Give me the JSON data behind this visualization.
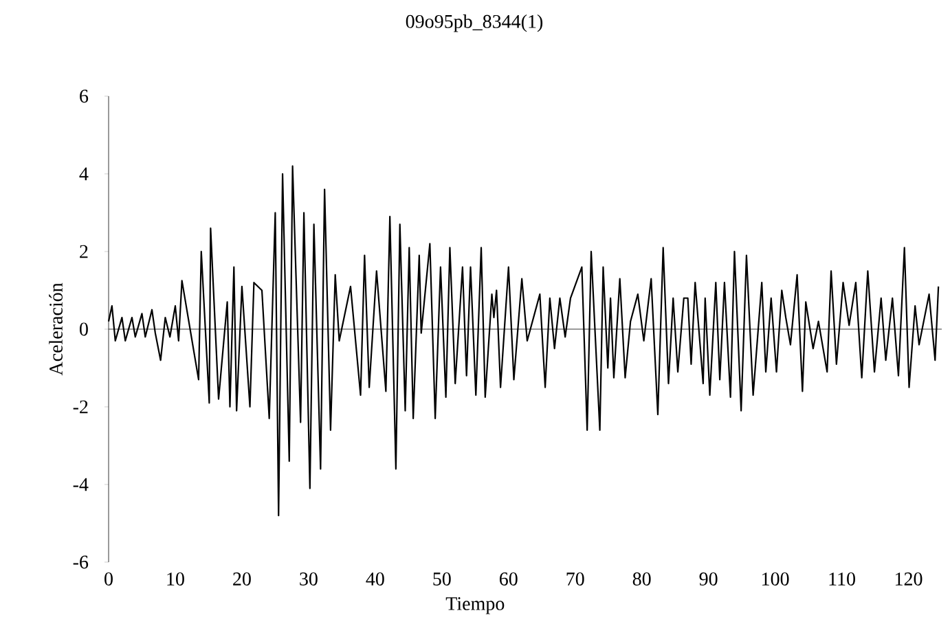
{
  "chart_data": {
    "type": "line",
    "title": "09o95pb_8344(1)",
    "xlabel": "Tiempo",
    "ylabel": "Aceleración",
    "xlim": [
      0,
      125
    ],
    "ylim": [
      -6,
      6
    ],
    "xticks": [
      0,
      10,
      20,
      30,
      40,
      50,
      60,
      70,
      80,
      90,
      100,
      110,
      120
    ],
    "yticks": [
      -6,
      -4,
      -2,
      0,
      2,
      4,
      6
    ],
    "marker": "none",
    "line_style": "solid",
    "series": [
      {
        "color": "#000000",
        "x": [
          0,
          0.5,
          1,
          2,
          2.5,
          3.5,
          4,
          5,
          5.5,
          6.5,
          7,
          7.8,
          8.5,
          9.2,
          10,
          10.5,
          11,
          13.5,
          13.9,
          15.1,
          15.3,
          16.5,
          17.8,
          18.2,
          18.8,
          19.2,
          20,
          21.2,
          21.8,
          23,
          24.1,
          25,
          25.5,
          26.1,
          27.1,
          27.6,
          28.8,
          29.3,
          30.2,
          30.8,
          31.8,
          32.4,
          33.3,
          34,
          34.6,
          36.3,
          37.8,
          38.4,
          39.1,
          40.2,
          41.6,
          42.2,
          43.1,
          43.7,
          44.5,
          45.1,
          45.7,
          46.6,
          46.9,
          48.2,
          49,
          49.8,
          50.6,
          51.2,
          52,
          53.1,
          53.7,
          54.3,
          55.1,
          55.9,
          56.5,
          57.5,
          57.8,
          58.2,
          58.8,
          60,
          60.8,
          62,
          62.8,
          64.7,
          65.5,
          66.2,
          66.9,
          67.7,
          68.5,
          69.3,
          71,
          71.8,
          72.4,
          73.7,
          74.2,
          74.9,
          75.3,
          75.8,
          76.7,
          77.5,
          78.3,
          79.4,
          80.3,
          81.4,
          82.4,
          83.2,
          84,
          84.7,
          85.4,
          86.3,
          86.9,
          87.4,
          88,
          89.2,
          89.5,
          90.2,
          91.1,
          91.7,
          92.4,
          93.3,
          93.9,
          94.9,
          95.7,
          96.7,
          98,
          98.6,
          99.4,
          100.2,
          101,
          101.6,
          102.3,
          103.3,
          104.1,
          104.6,
          105.7,
          106.5,
          107.8,
          108.4,
          109.2,
          110.2,
          111.1,
          112.1,
          113,
          113.9,
          114.9,
          115.9,
          116.6,
          117.6,
          118.5,
          119.4,
          120.1,
          121,
          121.6,
          123.1,
          124,
          124.5
        ],
        "values": [
          0.2,
          0.6,
          -0.3,
          0.3,
          -0.3,
          0.3,
          -0.2,
          0.4,
          -0.2,
          0.5,
          -0.1,
          -0.8,
          0.3,
          -0.2,
          0.6,
          -0.3,
          1.25,
          -1.3,
          2.0,
          -1.9,
          2.6,
          -1.8,
          0.7,
          -2.0,
          1.6,
          -2.1,
          1.1,
          -2.0,
          1.2,
          1.0,
          -2.3,
          3.0,
          -4.8,
          4.0,
          -3.4,
          4.2,
          -2.4,
          3.0,
          -4.1,
          2.7,
          -3.6,
          3.6,
          -2.6,
          1.4,
          -0.3,
          1.1,
          -1.7,
          1.9,
          -1.5,
          1.5,
          -1.6,
          2.9,
          -3.6,
          2.7,
          -2.1,
          2.1,
          -2.3,
          1.9,
          -0.1,
          2.2,
          -2.3,
          1.6,
          -1.75,
          2.1,
          -1.4,
          1.6,
          -1.2,
          1.6,
          -1.7,
          2.1,
          -1.75,
          0.9,
          0.3,
          1.0,
          -1.5,
          1.6,
          -1.3,
          1.3,
          -0.3,
          0.9,
          -1.5,
          0.8,
          -0.5,
          0.8,
          -0.2,
          0.8,
          1.6,
          -2.6,
          2.0,
          -2.6,
          1.6,
          -1.0,
          0.8,
          -1.25,
          1.3,
          -1.25,
          0.2,
          0.9,
          -0.3,
          1.3,
          -2.2,
          2.1,
          -1.4,
          0.8,
          -1.1,
          0.8,
          0.8,
          -0.9,
          1.2,
          -1.4,
          0.8,
          -1.7,
          1.2,
          -1.3,
          1.2,
          -1.75,
          2.0,
          -2.1,
          1.9,
          -1.7,
          1.2,
          -1.1,
          0.8,
          -1.1,
          1.0,
          0.3,
          -0.4,
          1.4,
          -1.6,
          0.7,
          -0.5,
          0.2,
          -1.1,
          1.5,
          -0.9,
          1.2,
          0.1,
          1.2,
          -1.25,
          1.5,
          -1.1,
          0.8,
          -0.8,
          0.8,
          -1.2,
          2.1,
          -1.5,
          0.6,
          -0.4,
          0.9,
          -0.8,
          1.1
        ]
      }
    ]
  }
}
